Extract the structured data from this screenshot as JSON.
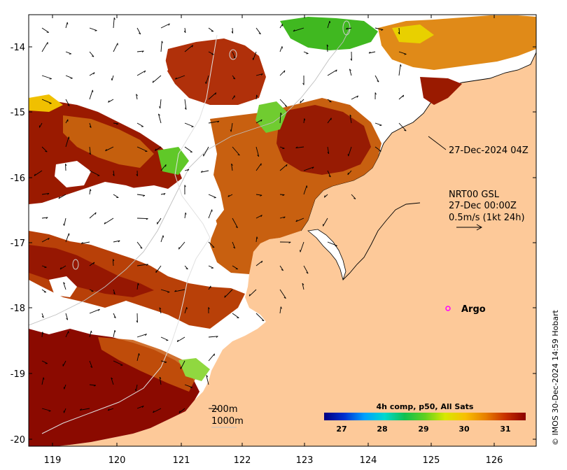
{
  "axes": {
    "lon_ticks": [
      "119",
      "120",
      "121",
      "122",
      "123",
      "124",
      "125",
      "126"
    ],
    "lat_ticks": [
      "-14",
      "-15",
      "-16",
      "-17",
      "-18",
      "-19",
      "-20"
    ]
  },
  "annotations": {
    "swath_time": "27-Dec-2024 04Z",
    "current_source": "NRT00 GSL",
    "current_time": "27-Dec 00:00Z",
    "current_scale": "0.5m/s (1kt 24h)",
    "isobath_200": "200m",
    "isobath_1000": "1000m",
    "argo_label": "Argo"
  },
  "colorbar": {
    "title": "4h comp, p50, All Sats",
    "ticks": [
      "27",
      "28",
      "29",
      "30",
      "31"
    ],
    "stops": [
      "#000080",
      "#0030d0",
      "#00a0ff",
      "#00d8d0",
      "#10c050",
      "#60d020",
      "#d8e800",
      "#f8c000",
      "#e88000",
      "#c83000",
      "#8b0000"
    ]
  },
  "credit": "© IMOS 30-Dec-2024 14:59 Hobart",
  "colors": {
    "land": "#fdc999",
    "sst_warm": "#8b0a00",
    "sst_orange": "#d06a10",
    "sst_green": "#40b820",
    "argo_marker": "#ff00ff",
    "no_data": "#ffffff"
  }
}
